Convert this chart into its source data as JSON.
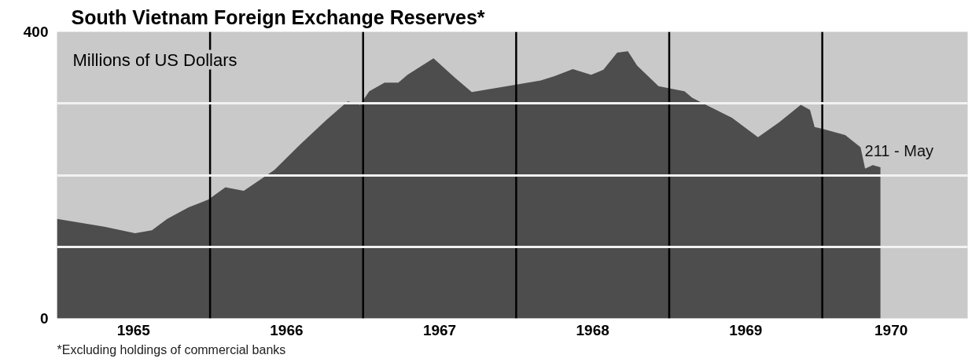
{
  "chart_data": {
    "type": "area",
    "title": "South Vietnam Foreign Exchange Reserves*",
    "ylabel": "Millions of US Dollars",
    "x": [
      1965.0,
      1965.31,
      1965.51,
      1965.62,
      1965.72,
      1965.86,
      1965.99,
      1966.1,
      1966.22,
      1966.33,
      1966.42,
      1966.59,
      1966.76,
      1966.9,
      1966.98,
      1967.04,
      1967.14,
      1967.23,
      1967.29,
      1967.46,
      1967.6,
      1967.71,
      1967.94,
      1968.16,
      1968.25,
      1968.37,
      1968.49,
      1968.57,
      1968.66,
      1968.73,
      1968.79,
      1968.93,
      1969.1,
      1969.15,
      1969.24,
      1969.41,
      1969.58,
      1969.72,
      1969.86,
      1969.92,
      1969.95,
      1970.01,
      1970.15,
      1970.25,
      1970.28,
      1970.33,
      1970.38
    ],
    "series": [
      {
        "color": "#4d4d4d",
        "values": [
          139,
          128,
          119,
          123,
          139,
          155,
          166,
          183,
          178,
          194,
          207,
          243,
          277,
          303,
          298,
          317,
          329,
          329,
          340,
          363,
          336,
          316,
          324,
          332,
          338,
          348,
          340,
          347,
          371,
          373,
          353,
          324,
          317,
          308,
          298,
          280,
          253,
          274,
          298,
          291,
          267,
          264,
          256,
          239,
          209,
          214,
          211
        ]
      }
    ],
    "xlim": [
      1965.0,
      1970.95
    ],
    "ylim": [
      0,
      400
    ],
    "xticks": [
      {
        "value": 1965.5,
        "label": "1965"
      },
      {
        "value": 1966.5,
        "label": "1966"
      },
      {
        "value": 1967.5,
        "label": "1967"
      },
      {
        "value": 1968.5,
        "label": "1968"
      },
      {
        "value": 1969.5,
        "label": "1969"
      },
      {
        "value": 1970.45,
        "label": "1970"
      }
    ],
    "yticks": [
      0,
      {
        "value": 100,
        "label": null
      },
      {
        "value": 200,
        "label": null
      },
      {
        "value": 300,
        "label": null
      },
      400
    ],
    "grid": "y",
    "ref_lines": [
      {
        "axis": "x",
        "value": 1966,
        "color": "#000000"
      },
      {
        "axis": "x",
        "value": 1967,
        "color": "#000000"
      },
      {
        "axis": "x",
        "value": 1968,
        "color": "#000000"
      },
      {
        "axis": "x",
        "value": 1969,
        "color": "#000000"
      },
      {
        "axis": "x",
        "value": 1970,
        "color": "#000000"
      }
    ],
    "annotations": [
      {
        "text": "211 - May",
        "x": 1970.38,
        "y": 211
      },
      "*Excluding holdings of commercial banks"
    ]
  }
}
